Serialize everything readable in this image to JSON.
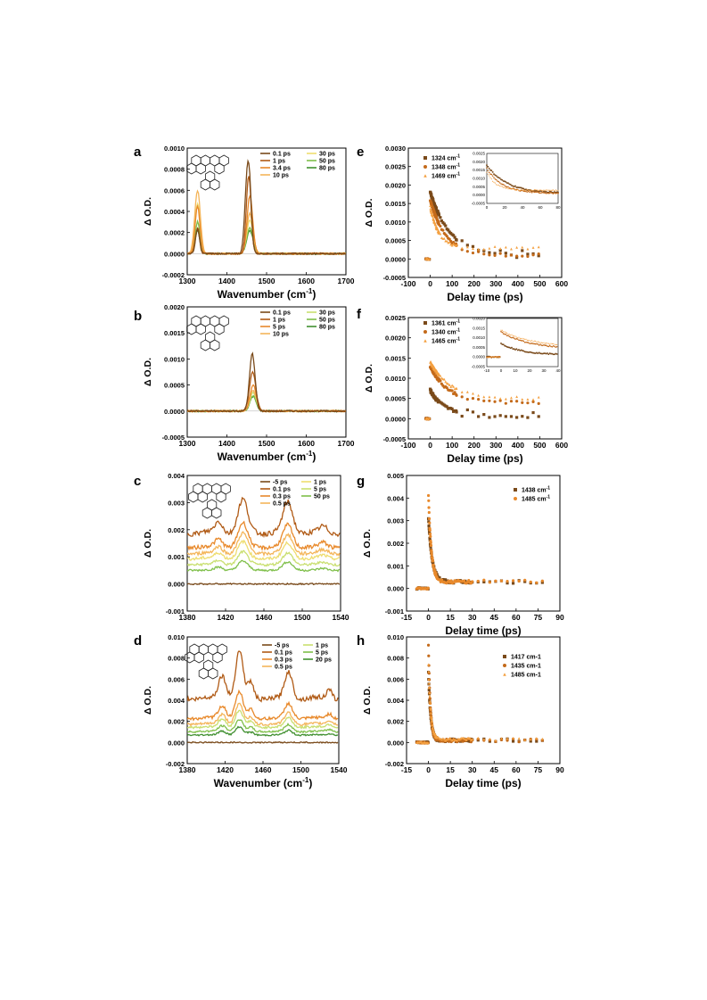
{
  "colors": {
    "dark_brown": "#7a4a1a",
    "brown": "#b05a15",
    "orange": "#e8892b",
    "light_orange": "#f4b55a",
    "pale_yellow": "#eedd70",
    "yellow_green": "#c9df70",
    "green": "#7fbf4a",
    "dark_green": "#3f8f2f"
  },
  "chart_data": [
    {
      "panel": "a",
      "type": "line",
      "xlabel": "Wavenumber (cm",
      "xlabel_sup": "-1",
      "xlabel_close": ")",
      "ylabel": "Δ O.D.",
      "xlim": [
        1300,
        1700
      ],
      "ylim": [
        -0.0002,
        0.001
      ],
      "xticks": [
        1300,
        1400,
        1500,
        1600,
        1700
      ],
      "yticks": [
        -0.0002,
        0.0,
        0.0002,
        0.0004,
        0.0006,
        0.0008,
        0.001
      ],
      "ytick_labels": [
        "-0.0002",
        "0.0000",
        "0.0002",
        "0.0004",
        "0.0006",
        "0.0008",
        "0.0010"
      ],
      "series": [
        {
          "name": "0.1 ps",
          "color": "#7a4a1a",
          "peaks": [
            [
              1326,
              0.00023,
              5
            ],
            [
              1447,
              0.00025,
              5
            ],
            [
              1455,
              0.0008,
              6
            ]
          ]
        },
        {
          "name": "1 ps",
          "color": "#b05a15",
          "peaks": [
            [
              1326,
              0.00025,
              5
            ],
            [
              1455,
              0.00074,
              6
            ]
          ]
        },
        {
          "name": "3.4 ps",
          "color": "#e8892b",
          "peaks": [
            [
              1326,
              0.00045,
              6
            ],
            [
              1458,
              0.00055,
              7
            ]
          ]
        },
        {
          "name": "10 ps",
          "color": "#f4b55a",
          "peaks": [
            [
              1326,
              0.0006,
              7
            ],
            [
              1458,
              0.00038,
              8
            ]
          ]
        },
        {
          "name": "30 ps",
          "color": "#eedd70",
          "peaks": [
            [
              1326,
              0.00048,
              6
            ],
            [
              1458,
              0.00032,
              8
            ]
          ]
        },
        {
          "name": "50 ps",
          "color": "#7fbf4a",
          "peaks": [
            [
              1326,
              0.0003,
              6
            ],
            [
              1458,
              0.00025,
              8
            ]
          ]
        },
        {
          "name": "80 ps",
          "color": "#3f8f2f",
          "peaks": [
            [
              1326,
              0.00022,
              6
            ],
            [
              1458,
              0.00022,
              8
            ]
          ]
        }
      ]
    },
    {
      "panel": "b",
      "type": "line",
      "xlabel": "Wavenumber (cm",
      "xlabel_sup": "-1",
      "xlabel_close": ")",
      "ylabel": "Δ O.D.",
      "xlim": [
        1300,
        1700
      ],
      "ylim": [
        -0.0005,
        0.002
      ],
      "xticks": [
        1300,
        1400,
        1500,
        1600,
        1700
      ],
      "yticks": [
        -0.0005,
        0.0,
        0.0005,
        0.001,
        0.0015,
        0.002
      ],
      "ytick_labels": [
        "-0.0005",
        "0.0000",
        "0.0005",
        "0.0010",
        "0.0015",
        "0.0020"
      ],
      "series": [
        {
          "name": "0.1 ps",
          "color": "#7a4a1a",
          "peaks": [
            [
              1464,
              0.0011,
              7
            ]
          ]
        },
        {
          "name": "1 ps",
          "color": "#b05a15",
          "peaks": [
            [
              1465,
              0.00075,
              8
            ]
          ]
        },
        {
          "name": "5 ps",
          "color": "#e8892b",
          "peaks": [
            [
              1466,
              0.0005,
              8
            ]
          ]
        },
        {
          "name": "10 ps",
          "color": "#f4b55a",
          "peaks": [
            [
              1466,
              0.0004,
              8
            ]
          ]
        },
        {
          "name": "30 ps",
          "color": "#c9df70",
          "peaks": [
            [
              1466,
              0.00035,
              8
            ]
          ]
        },
        {
          "name": "50 ps",
          "color": "#7fbf4a",
          "peaks": [
            [
              1466,
              0.0003,
              8
            ]
          ]
        },
        {
          "name": "80 ps",
          "color": "#3f8f2f",
          "peaks": [
            [
              1466,
              0.00028,
              8
            ]
          ]
        }
      ]
    },
    {
      "panel": "c",
      "type": "line",
      "xlabel": "",
      "ylabel": "Δ O.D.",
      "xlim": [
        1380,
        1540
      ],
      "ylim": [
        -0.001,
        0.004
      ],
      "xticks": [
        1380,
        1420,
        1460,
        1500,
        1540
      ],
      "yticks": [
        -0.001,
        0.0,
        0.001,
        0.002,
        0.003,
        0.004
      ],
      "ytick_labels": [
        "-0.001",
        "0.000",
        "0.001",
        "0.002",
        "0.003",
        "0.004"
      ],
      "series": [
        {
          "name": "-5 ps",
          "color": "#7a4a1a",
          "scale": 0.0
        },
        {
          "name": "0.1 ps",
          "color": "#b05a15",
          "scale": 1.0
        },
        {
          "name": "0.3 ps",
          "color": "#e8892b",
          "scale": 0.72
        },
        {
          "name": "0.5 ps",
          "color": "#f4b55a",
          "scale": 0.6
        },
        {
          "name": "1 ps",
          "color": "#eedd70",
          "scale": 0.5
        },
        {
          "name": "5 ps",
          "color": "#c9df70",
          "scale": 0.38
        },
        {
          "name": "50 ps",
          "color": "#7fbf4a",
          "scale": 0.27
        }
      ],
      "baseline": 0.0019,
      "features": [
        [
          1438,
          0.0012,
          5
        ],
        [
          1485,
          0.0011,
          5
        ],
        [
          1413,
          0.0004,
          4
        ],
        [
          1522,
          0.0002,
          4
        ]
      ]
    },
    {
      "panel": "d",
      "type": "line",
      "xlabel": "Wavenumber (cm",
      "xlabel_sup": "-1",
      "xlabel_close": ")",
      "ylabel": "Δ O.D.",
      "xlim": [
        1380,
        1540
      ],
      "ylim": [
        -0.002,
        0.01
      ],
      "xticks": [
        1380,
        1420,
        1460,
        1500,
        1540
      ],
      "yticks": [
        -0.002,
        0.0,
        0.002,
        0.004,
        0.006,
        0.008,
        0.01
      ],
      "ytick_labels": [
        "-0.002",
        "0.000",
        "0.002",
        "0.004",
        "0.006",
        "0.008",
        "0.010"
      ],
      "series": [
        {
          "name": "-5 ps",
          "color": "#7a4a1a",
          "scale": 0.0
        },
        {
          "name": "0.1 ps",
          "color": "#b05a15",
          "scale": 1.0
        },
        {
          "name": "0.3 ps",
          "color": "#e8892b",
          "scale": 0.55
        },
        {
          "name": "0.5 ps",
          "color": "#f4b55a",
          "scale": 0.42
        },
        {
          "name": "1 ps",
          "color": "#c9df70",
          "scale": 0.35
        },
        {
          "name": "5 ps",
          "color": "#7fbf4a",
          "scale": 0.25
        },
        {
          "name": "20 ps",
          "color": "#3f8f2f",
          "scale": 0.17
        }
      ],
      "baseline": 0.0042,
      "features": [
        [
          1417,
          0.0022,
          4
        ],
        [
          1435,
          0.0045,
          4
        ],
        [
          1447,
          0.0015,
          3
        ],
        [
          1487,
          0.0025,
          4
        ],
        [
          1530,
          0.0008,
          3
        ]
      ]
    },
    {
      "panel": "e",
      "type": "scatter",
      "xlabel": "Delay time (ps)",
      "ylabel": "Δ O.D.",
      "xlim": [
        -100,
        600
      ],
      "ylim": [
        -0.0005,
        0.003
      ],
      "xticks": [
        -100,
        0,
        100,
        200,
        300,
        400,
        500,
        600
      ],
      "yticks": [
        -0.0005,
        0.0,
        0.0005,
        0.001,
        0.0015,
        0.002,
        0.0025,
        0.003
      ],
      "ytick_labels": [
        "-0.0005",
        "0.0000",
        "0.0005",
        "0.0010",
        "0.0015",
        "0.0020",
        "0.0025",
        "0.0030"
      ],
      "series": [
        {
          "name": "1324 cm",
          "sup": "-1",
          "marker": "square",
          "color": "#7a4a1a",
          "amp": 0.0017,
          "tau": 90,
          "floor": 0.0001
        },
        {
          "name": "1348 cm",
          "sup": "-1",
          "marker": "circle",
          "color": "#c46a1a",
          "amp": 0.0015,
          "tau": 70,
          "floor": 0.0001
        },
        {
          "name": "1469 cm",
          "sup": "-1",
          "marker": "triangle",
          "color": "#f4a040",
          "amp": 0.0011,
          "tau": 40,
          "floor": 0.0003
        }
      ],
      "inset": {
        "xlim": [
          0,
          80
        ],
        "ylim": [
          -0.0005,
          0.0025
        ],
        "xticks": [
          0,
          20,
          40,
          60,
          80
        ],
        "yticks": [
          -0.0005,
          0.0,
          0.0005,
          0.001,
          0.0015,
          0.002,
          0.0025
        ],
        "ytick_labels": [
          "-0.0005",
          "0.0000",
          "0.0005",
          "0.0010",
          "0.0015",
          "0.0020",
          "0.0025"
        ]
      }
    },
    {
      "panel": "f",
      "type": "scatter",
      "xlabel": "Delay time (ps)",
      "ylabel": "Δ O.D.",
      "xlim": [
        -100,
        600
      ],
      "ylim": [
        -0.0005,
        0.0025
      ],
      "xticks": [
        -100,
        0,
        100,
        200,
        300,
        400,
        500,
        600
      ],
      "yticks": [
        -0.0005,
        0.0,
        0.0005,
        0.001,
        0.0015,
        0.002,
        0.0025
      ],
      "ytick_labels": [
        "-0.0005",
        "0.0000",
        "0.0005",
        "0.0010",
        "0.0015",
        "0.0020",
        "0.0025"
      ],
      "series": [
        {
          "name": "1361 cm",
          "sup": "-1",
          "marker": "square",
          "color": "#7a4a1a",
          "amp": 0.0006,
          "tau": 60,
          "floor": 0.0001
        },
        {
          "name": "1340 cm",
          "sup": "-1",
          "marker": "circle",
          "color": "#c46a1a",
          "amp": 0.0009,
          "tau": 80,
          "floor": 0.0004
        },
        {
          "name": "1465 cm",
          "sup": "-1",
          "marker": "triangle",
          "color": "#f4a040",
          "amp": 0.0009,
          "tau": 90,
          "floor": 0.0005
        }
      ],
      "inset": {
        "xlim": [
          -10,
          40
        ],
        "ylim": [
          -0.0005,
          0.002
        ],
        "xticks": [
          -10,
          0,
          10,
          20,
          30,
          40
        ],
        "yticks": [
          -0.0005,
          0.0,
          0.0005,
          0.001,
          0.0015,
          0.002
        ],
        "ytick_labels": [
          "-0.0005",
          "0.0000",
          "0.0005",
          "0.0010",
          "0.0015",
          "0.0020"
        ]
      }
    },
    {
      "panel": "g",
      "type": "scatter",
      "xlabel": "Delay time (ps)",
      "ylabel": "Δ O.D.",
      "xlim": [
        -15,
        90
      ],
      "ylim": [
        -0.001,
        0.005
      ],
      "xticks": [
        -15,
        0,
        15,
        30,
        45,
        60,
        75,
        90
      ],
      "yticks": [
        -0.001,
        0.0,
        0.001,
        0.002,
        0.003,
        0.004,
        0.005
      ],
      "ytick_labels": [
        "-0.001",
        "0.000",
        "0.001",
        "0.002",
        "0.003",
        "0.004",
        "0.005"
      ],
      "series": [
        {
          "name": "1438 cm",
          "sup": "-1",
          "marker": "square",
          "color": "#7a4a1a",
          "amp": 0.0028,
          "tau": 2.5,
          "floor": 0.0003
        },
        {
          "name": "1485 cm",
          "sup": "-1",
          "marker": "circle",
          "color": "#e8892b",
          "amp": 0.0038,
          "tau": 2.0,
          "floor": 0.0003
        }
      ]
    },
    {
      "panel": "h",
      "type": "scatter",
      "xlabel": "Delay time (ps)",
      "ylabel": "Δ O.D.",
      "xlim": [
        -15,
        90
      ],
      "ylim": [
        -0.002,
        0.01
      ],
      "xticks": [
        -15,
        0,
        15,
        30,
        45,
        60,
        75,
        90
      ],
      "yticks": [
        -0.002,
        0.0,
        0.002,
        0.004,
        0.006,
        0.008,
        0.01
      ],
      "ytick_labels": [
        "-0.002",
        "0.000",
        "0.002",
        "0.004",
        "0.006",
        "0.008",
        "0.010"
      ],
      "series": [
        {
          "name": "1417 cm-1",
          "marker": "square",
          "color": "#7a4a1a",
          "amp": 0.0065,
          "tau": 1.5,
          "floor": 0.0002
        },
        {
          "name": "1435 cm-1",
          "marker": "circle",
          "color": "#c46a1a",
          "amp": 0.009,
          "tau": 1.3,
          "floor": 0.0002
        },
        {
          "name": "1485 cm-1",
          "marker": "triangle",
          "color": "#f4a040",
          "amp": 0.007,
          "tau": 1.6,
          "floor": 0.0003
        }
      ]
    }
  ]
}
